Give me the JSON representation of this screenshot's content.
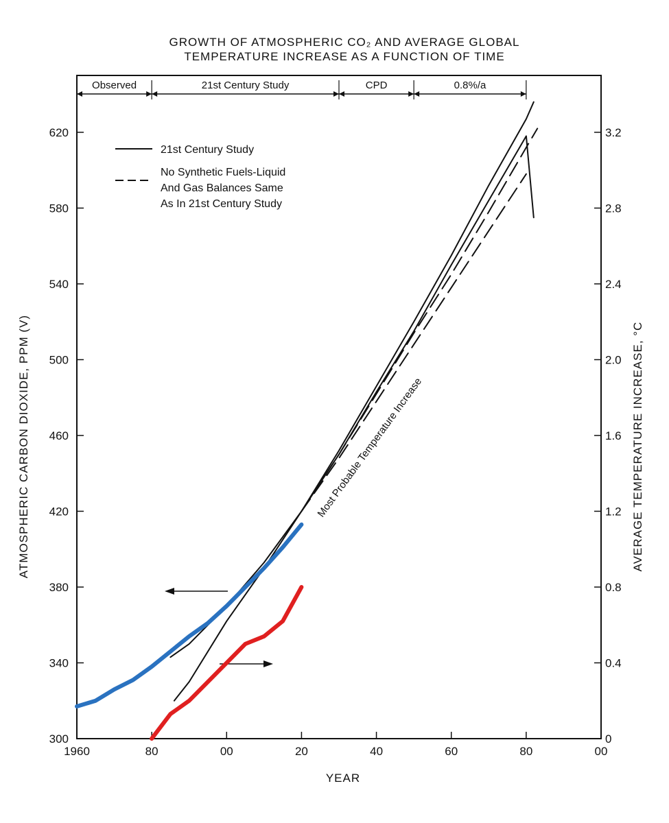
{
  "chart_data": {
    "type": "line",
    "title": "GROWTH OF ATMOSPHERIC CO2 AND AVERAGE GLOBAL TEMPERATURE INCREASE AS A FUNCTION OF TIME",
    "title_lines": [
      "GROWTH OF ATMOSPHERIC CO₂ AND AVERAGE GLOBAL",
      "TEMPERATURE INCREASE AS A FUNCTION OF TIME"
    ],
    "xlabel": "YEAR",
    "ylabel": "ATMOSPHERIC CARBON DIOXIDE, PPM (V)",
    "y2label": "AVERAGE TEMPERATURE INCREASE, °C",
    "xlim": [
      1960,
      2100
    ],
    "ylim": [
      300,
      650
    ],
    "y2lim": [
      0,
      3.5
    ],
    "x_ticks": [
      1960,
      1980,
      2000,
      2020,
      2040,
      2060,
      2080,
      2100
    ],
    "x_tick_labels": [
      "1960",
      "80",
      "00",
      "20",
      "40",
      "60",
      "80",
      "00"
    ],
    "y_ticks": [
      300,
      340,
      380,
      420,
      460,
      500,
      540,
      580,
      620
    ],
    "y2_ticks": [
      0,
      0.4,
      0.8,
      1.2,
      1.6,
      2.0,
      2.4,
      2.8,
      3.2
    ],
    "y2_tick_labels": [
      "0",
      "0.4",
      "0.8",
      "1.2",
      "1.6",
      "2.0",
      "2.4",
      "2.8",
      "3.2"
    ],
    "phases": [
      {
        "label": "Observed",
        "start": 1960,
        "end": 1980
      },
      {
        "label": "21st Century Study",
        "start": 1980,
        "end": 2030
      },
      {
        "label": "CPD",
        "start": 2030,
        "end": 2050
      },
      {
        "label": "0.8%/a",
        "start": 2050,
        "end": 2080
      }
    ],
    "legend": [
      {
        "label_lines": [
          "21st Century Study"
        ],
        "style": "solid"
      },
      {
        "label_lines": [
          "No Synthetic Fuels-Liquid",
          "And Gas Balances Same",
          "As In 21st Century Study"
        ],
        "style": "dashed"
      }
    ],
    "annotation": "Most Probable Temperature Increase",
    "series": [
      {
        "axis": "left",
        "style": "solid",
        "color": "#111111",
        "x": [
          1985,
          1990,
          2000,
          2010,
          2020,
          2030,
          2040,
          2050,
          2060,
          2070,
          2080,
          2082
        ],
        "y": [
          343,
          350,
          370,
          393,
          420,
          452,
          486,
          520,
          555,
          592,
          627,
          636
        ]
      },
      {
        "axis": "left",
        "style": "dashed",
        "color": "#111111",
        "x": [
          2020,
          2030,
          2040,
          2050,
          2060,
          2070,
          2080,
          2083
        ],
        "y": [
          420,
          450,
          482,
          514,
          545,
          578,
          612,
          622
        ]
      },
      {
        "axis": "right",
        "style": "solid",
        "color": "#111111",
        "x": [
          1986,
          1990,
          2000,
          2010,
          2020,
          2030,
          2040,
          2050,
          2060,
          2070,
          2080,
          2082
        ],
        "y": [
          0.2,
          0.3,
          0.62,
          0.9,
          1.2,
          1.5,
          1.83,
          2.15,
          2.5,
          2.84,
          3.18,
          2.75
        ]
      },
      {
        "axis": "right",
        "style": "dashed",
        "color": "#111111",
        "x": [
          2020,
          2030,
          2040,
          2050,
          2060,
          2070,
          2080
        ],
        "y": [
          1.2,
          1.48,
          1.78,
          2.08,
          2.38,
          2.68,
          2.98
        ]
      },
      {
        "axis": "left",
        "style": "overlay",
        "color": "#2a72c0",
        "x": [
          1960,
          1965,
          1970,
          1975,
          1980,
          1985,
          1990,
          1995,
          2000,
          2005,
          2010,
          2015,
          2020
        ],
        "y": [
          317,
          320,
          326,
          331,
          338,
          346,
          354,
          361,
          370,
          380,
          390,
          401,
          413
        ]
      },
      {
        "axis": "right",
        "style": "overlay",
        "color": "#e02020",
        "x": [
          1980,
          1985,
          1990,
          1995,
          2000,
          2005,
          2010,
          2015,
          2020
        ],
        "y": [
          0,
          0.13,
          0.2,
          0.3,
          0.4,
          0.5,
          0.54,
          0.62,
          0.8
        ]
      }
    ],
    "grid": false
  }
}
